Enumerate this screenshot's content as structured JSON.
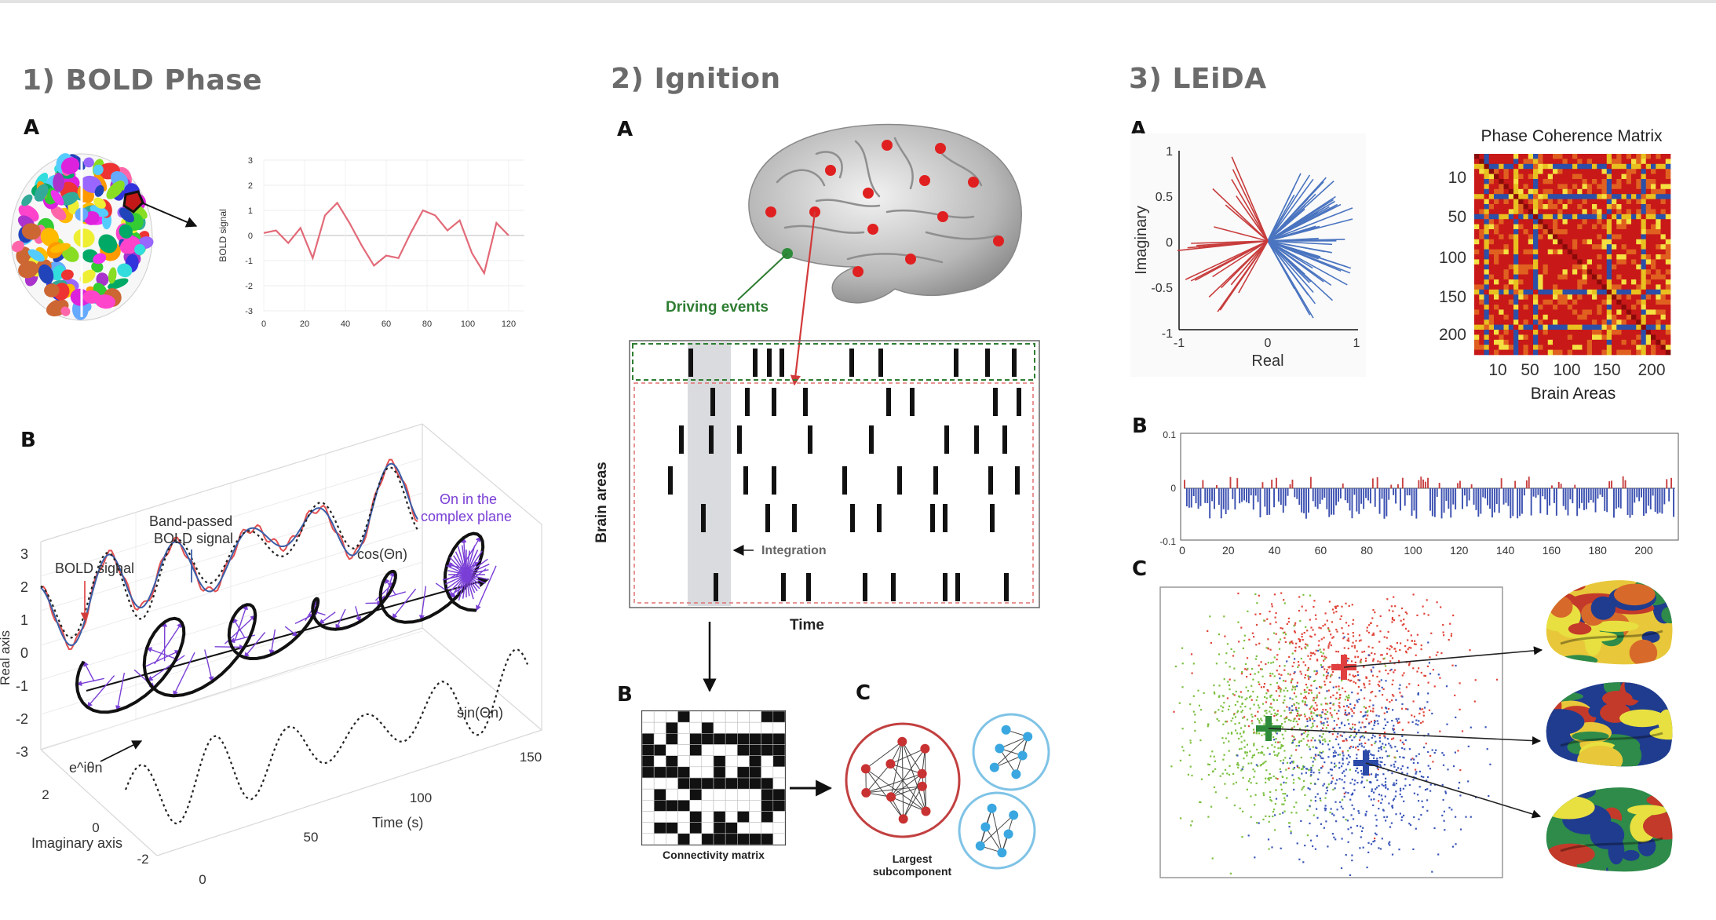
{
  "sections": [
    {
      "title": "1) BOLD Phase"
    },
    {
      "title": "2) Ignition"
    },
    {
      "title": "3) LEiDA"
    }
  ],
  "bold_phase": {
    "letters": {
      "a": "A",
      "b": "B"
    },
    "a_plot": {
      "y_label": "BOLD signal",
      "y_ticks": [
        "3",
        "2",
        "1",
        "0",
        "-1",
        "-2",
        "-3"
      ],
      "x_ticks": [
        "0",
        "20",
        "40",
        "60",
        "80",
        "100",
        "120"
      ],
      "signal": [
        0.1,
        0.2,
        -0.3,
        0.3,
        -0.9,
        0.8,
        1.3,
        0.5,
        -0.4,
        -1.2,
        -0.8,
        -0.9,
        0.1,
        1.0,
        0.8,
        0.2,
        0.6,
        -0.7,
        -1.5,
        0.5,
        0.0
      ]
    },
    "b_plot": {
      "labels": {
        "bold_signal": "BOLD signal",
        "band_passed_1": "Band-passed",
        "band_passed_2": "BOLD signal",
        "cos": "cos(Θn)",
        "theta_1": "Θn in the",
        "theta_2": "complex plane",
        "sin": "sin(Θn)",
        "exp": "e^iθn",
        "real_axis": "Real axis",
        "imag_axis": "Imaginary axis",
        "time_axis": "Time (s)"
      },
      "y_ticks": [
        "3",
        "2",
        "1",
        "0",
        "-1",
        "-2",
        "-3"
      ],
      "time_ticks": [
        "0",
        "50",
        "100",
        "150"
      ],
      "imag_ticks": [
        "2",
        "0",
        "-2"
      ]
    }
  },
  "ignition": {
    "letters": {
      "a": "A",
      "b": "B",
      "c": "C"
    },
    "driving_events": "Driving events",
    "integration": "Integration",
    "y_label": "Brain areas",
    "x_label": "Time",
    "connectivity_label": "Connectivity matrix",
    "largest_1": "Largest",
    "largest_2": "subcomponent"
  },
  "leida": {
    "letters": {
      "a": "A",
      "b": "B",
      "c": "C"
    },
    "polar": {
      "x_label": "Real",
      "y_label": "Imaginary",
      "x_ticks": [
        "-1",
        "0",
        "1"
      ],
      "y_ticks": [
        "1",
        "0.5",
        "0",
        "-0.5",
        "-1"
      ]
    },
    "matrix": {
      "title": "Phase Coherence Matrix",
      "x_label": "Brain Areas",
      "ticks": [
        "10",
        "50",
        "100",
        "150",
        "200"
      ]
    },
    "bar_plot": {
      "y_ticks": [
        "0.1",
        "0",
        "-0.1"
      ],
      "x_ticks": [
        "0",
        "20",
        "40",
        "60",
        "80",
        "100",
        "120",
        "140",
        "160",
        "180",
        "200"
      ]
    }
  },
  "colors": {
    "red": "#d23a3a",
    "blue": "#3a62b8",
    "green": "#6fb63a",
    "purple": "#7a3fd6",
    "dark_green": "#2e7d32"
  }
}
